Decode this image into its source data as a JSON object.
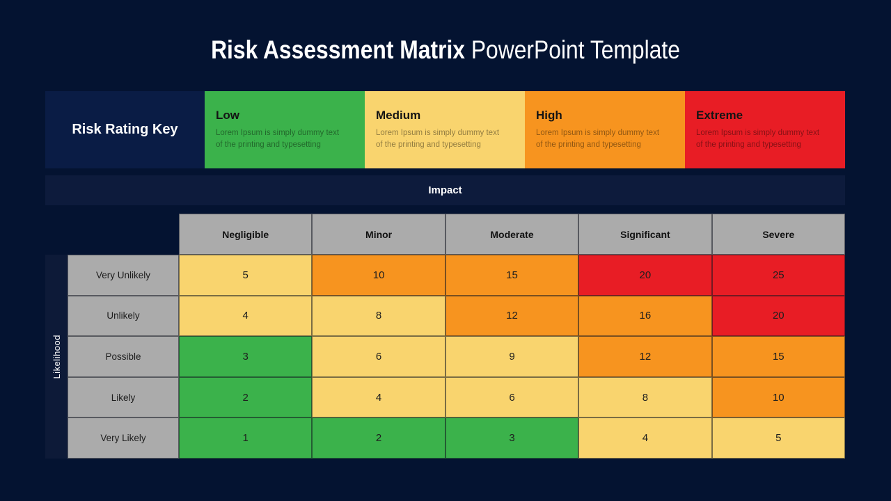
{
  "title": {
    "main": "Risk Assessment Matrix",
    "sub": "PowerPoint Template"
  },
  "palette": {
    "background": "#041331",
    "key_label_navy": "#0a1c45",
    "impact_bar_navy": "#0d1b3c",
    "likelihood_strip_navy": "#0d1a38",
    "header_gray": "#ababab",
    "green": "#3bb24b",
    "yellow": "#f9d46e",
    "orange": "#f7941f",
    "red": "#e81d25"
  },
  "rating_key": {
    "label": "Risk Rating Key",
    "items": [
      {
        "name": "Low",
        "level": "green",
        "description_lines": [
          "Lorem Ipsum is simply dummy text",
          "of the printing and typesetting"
        ]
      },
      {
        "name": "Medium",
        "level": "yellow",
        "description_lines": [
          "Lorem Ipsum is simply dummy text",
          "of the printing and typesetting"
        ]
      },
      {
        "name": "High",
        "level": "orange",
        "description_lines": [
          "Lorem Ipsum is simply dummy text",
          "of the printing and typesetting"
        ]
      },
      {
        "name": "Extreme",
        "level": "red",
        "description_lines": [
          "Lorem Ipsum is simply dummy text",
          "of the printing and typesetting"
        ]
      }
    ]
  },
  "impact_label": "Impact",
  "matrix": {
    "y_axis_label": "Likelihood",
    "columns": [
      "Negligible",
      "Minor",
      "Moderate",
      "Significant",
      "Severe"
    ],
    "rows": [
      {
        "label": "Very Unlikely",
        "values": [
          5,
          10,
          15,
          20,
          25
        ],
        "levels": [
          "yellow",
          "orange",
          "orange",
          "red",
          "red"
        ]
      },
      {
        "label": "Unlikely",
        "values": [
          4,
          8,
          12,
          16,
          20
        ],
        "levels": [
          "yellow",
          "yellow",
          "orange",
          "orange",
          "red"
        ]
      },
      {
        "label": "Possible",
        "values": [
          3,
          6,
          9,
          12,
          15
        ],
        "levels": [
          "green",
          "yellow",
          "yellow",
          "orange",
          "orange"
        ]
      },
      {
        "label": "Likely",
        "values": [
          2,
          4,
          6,
          8,
          10
        ],
        "levels": [
          "green",
          "yellow",
          "yellow",
          "yellow",
          "orange"
        ]
      },
      {
        "label": "Very Likely",
        "values": [
          1,
          2,
          3,
          4,
          5
        ],
        "levels": [
          "green",
          "green",
          "green",
          "yellow",
          "yellow"
        ]
      }
    ]
  }
}
